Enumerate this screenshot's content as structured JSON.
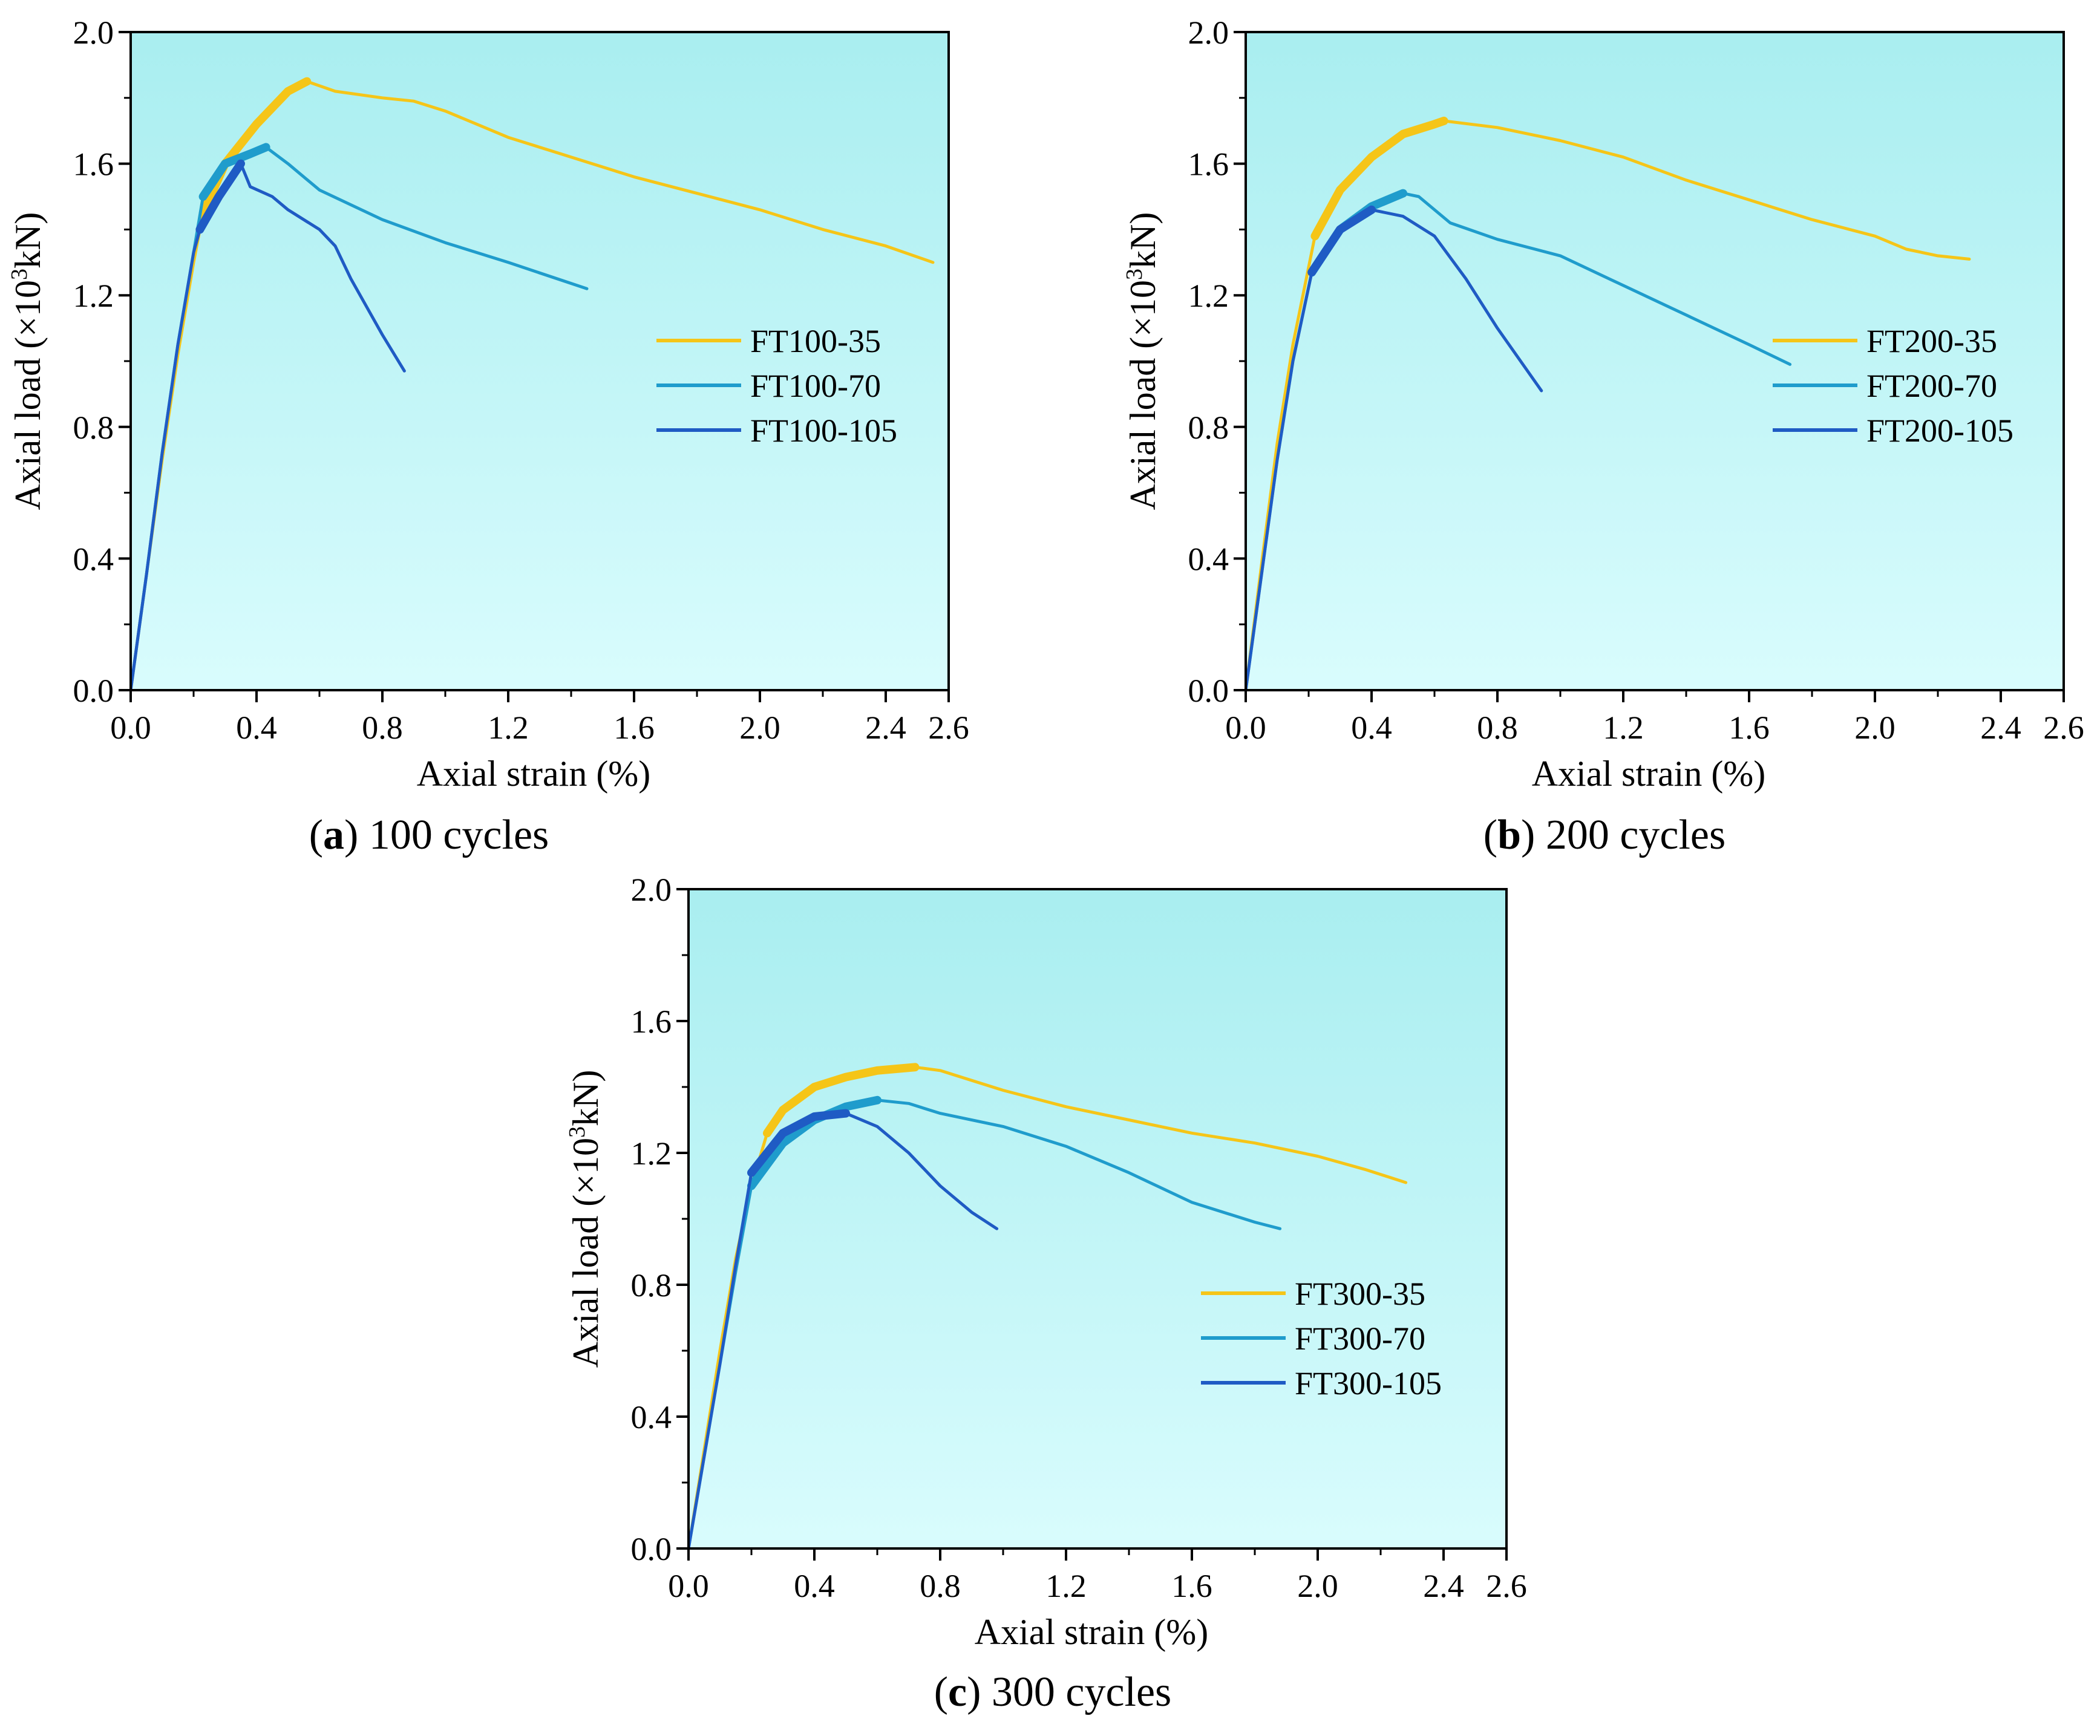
{
  "colors": {
    "series_35": "#f5c518",
    "series_70": "#1f9ccc",
    "series_105": "#1f5bc4",
    "plot_bg_top": "#a9eef0",
    "plot_bg_bottom": "#d9fcfd"
  },
  "chart_data": [
    {
      "type": "line",
      "panel_label": "a",
      "caption": "100 cycles",
      "xlabel": "Axial strain (%)",
      "ylabel_main": "Axial load (×10",
      "ylabel_sup": "3",
      "ylabel_tail": "kN)",
      "xlim": [
        0,
        2.6
      ],
      "ylim": [
        0,
        2.0
      ],
      "xticks": [
        "0.0",
        "0.4",
        "0.8",
        "1.2",
        "1.6",
        "2.0",
        "2.4",
        "2.6"
      ],
      "yticks": [
        "0.0",
        "0.4",
        "0.8",
        "1.2",
        "1.6",
        "2.0"
      ],
      "legend_position": "right-middle",
      "grid": false,
      "series": [
        {
          "name": "FT100-35",
          "color_key": "series_35",
          "x": [
            0,
            0.05,
            0.1,
            0.15,
            0.2,
            0.23,
            0.3,
            0.4,
            0.5,
            0.56,
            0.65,
            0.8,
            0.9,
            1.0,
            1.2,
            1.4,
            1.6,
            1.8,
            2.0,
            2.2,
            2.4,
            2.55
          ],
          "y": [
            0,
            0.35,
            0.7,
            1.02,
            1.3,
            1.45,
            1.6,
            1.72,
            1.82,
            1.85,
            1.82,
            1.8,
            1.79,
            1.76,
            1.68,
            1.62,
            1.56,
            1.51,
            1.46,
            1.4,
            1.35,
            1.3
          ],
          "thick_range": [
            0.22,
            0.57
          ]
        },
        {
          "name": "FT100-70",
          "color_key": "series_70",
          "x": [
            0,
            0.05,
            0.1,
            0.15,
            0.2,
            0.23,
            0.3,
            0.38,
            0.43,
            0.5,
            0.6,
            0.8,
            1.0,
            1.2,
            1.45
          ],
          "y": [
            0,
            0.35,
            0.72,
            1.05,
            1.33,
            1.5,
            1.6,
            1.63,
            1.65,
            1.6,
            1.52,
            1.43,
            1.36,
            1.3,
            1.22
          ],
          "thick_range": [
            0.22,
            0.45
          ]
        },
        {
          "name": "FT100-105",
          "color_key": "series_105",
          "x": [
            0,
            0.05,
            0.1,
            0.15,
            0.2,
            0.22,
            0.28,
            0.35,
            0.38,
            0.45,
            0.5,
            0.6,
            0.65,
            0.7,
            0.8,
            0.87
          ],
          "y": [
            0,
            0.35,
            0.72,
            1.05,
            1.33,
            1.4,
            1.5,
            1.6,
            1.53,
            1.5,
            1.46,
            1.4,
            1.35,
            1.25,
            1.08,
            0.97
          ],
          "thick_range": [
            0.21,
            0.36
          ]
        }
      ]
    },
    {
      "type": "line",
      "panel_label": "b",
      "caption": "200 cycles",
      "xlabel": "Axial strain (%)",
      "ylabel_main": "Axial load (×10",
      "ylabel_sup": "3",
      "ylabel_tail": "kN)",
      "xlim": [
        0,
        2.6
      ],
      "ylim": [
        0,
        2.0
      ],
      "xticks": [
        "0.0",
        "0.4",
        "0.8",
        "1.2",
        "1.6",
        "2.0",
        "2.4",
        "2.6"
      ],
      "yticks": [
        "0.0",
        "0.4",
        "0.8",
        "1.2",
        "1.6",
        "2.0"
      ],
      "legend_position": "right-middle",
      "grid": false,
      "series": [
        {
          "name": "FT200-35",
          "color_key": "series_35",
          "x": [
            0,
            0.05,
            0.1,
            0.15,
            0.22,
            0.3,
            0.4,
            0.5,
            0.6,
            0.63,
            0.8,
            1.0,
            1.2,
            1.4,
            1.6,
            1.8,
            2.0,
            2.1,
            2.2,
            2.3
          ],
          "y": [
            0,
            0.38,
            0.75,
            1.05,
            1.38,
            1.52,
            1.62,
            1.69,
            1.72,
            1.73,
            1.71,
            1.67,
            1.62,
            1.55,
            1.49,
            1.43,
            1.38,
            1.34,
            1.32,
            1.31
          ],
          "thick_range": [
            0.22,
            0.63
          ]
        },
        {
          "name": "FT200-70",
          "color_key": "series_70",
          "x": [
            0,
            0.05,
            0.1,
            0.15,
            0.21,
            0.3,
            0.4,
            0.5,
            0.55,
            0.65,
            0.8,
            1.0,
            1.2,
            1.4,
            1.6,
            1.73
          ],
          "y": [
            0,
            0.35,
            0.7,
            1.0,
            1.27,
            1.4,
            1.47,
            1.51,
            1.5,
            1.42,
            1.37,
            1.32,
            1.23,
            1.14,
            1.05,
            0.99
          ],
          "thick_range": [
            0.21,
            0.51
          ]
        },
        {
          "name": "FT200-105",
          "color_key": "series_105",
          "x": [
            0,
            0.05,
            0.1,
            0.15,
            0.21,
            0.3,
            0.4,
            0.5,
            0.6,
            0.7,
            0.8,
            0.94
          ],
          "y": [
            0,
            0.35,
            0.7,
            1.0,
            1.27,
            1.4,
            1.46,
            1.44,
            1.38,
            1.25,
            1.1,
            0.91
          ],
          "thick_range": [
            0.21,
            0.41
          ]
        }
      ]
    },
    {
      "type": "line",
      "panel_label": "c",
      "caption": "300 cycles",
      "xlabel": "Axial strain (%)",
      "ylabel_main": "Axial load (×10",
      "ylabel_sup": "3",
      "ylabel_tail": "kN)",
      "xlim": [
        0,
        2.6
      ],
      "ylim": [
        0,
        2.0
      ],
      "xticks": [
        "0.0",
        "0.4",
        "0.8",
        "1.2",
        "1.6",
        "2.0",
        "2.4",
        "2.6"
      ],
      "yticks": [
        "0.0",
        "0.4",
        "0.8",
        "1.2",
        "1.6",
        "2.0"
      ],
      "legend_position": "right-lower",
      "grid": false,
      "series": [
        {
          "name": "FT300-35",
          "color_key": "series_35",
          "x": [
            0,
            0.05,
            0.1,
            0.15,
            0.2,
            0.25,
            0.3,
            0.4,
            0.5,
            0.6,
            0.72,
            0.8,
            1.0,
            1.2,
            1.4,
            1.6,
            1.8,
            2.0,
            2.15,
            2.28
          ],
          "y": [
            0,
            0.3,
            0.6,
            0.88,
            1.1,
            1.26,
            1.33,
            1.4,
            1.43,
            1.45,
            1.46,
            1.45,
            1.39,
            1.34,
            1.3,
            1.26,
            1.23,
            1.19,
            1.15,
            1.11
          ],
          "thick_range": [
            0.25,
            0.72
          ]
        },
        {
          "name": "FT300-70",
          "color_key": "series_70",
          "x": [
            0,
            0.05,
            0.1,
            0.15,
            0.2,
            0.3,
            0.4,
            0.5,
            0.6,
            0.7,
            0.8,
            1.0,
            1.2,
            1.4,
            1.6,
            1.8,
            1.88
          ],
          "y": [
            0,
            0.28,
            0.56,
            0.84,
            1.1,
            1.23,
            1.3,
            1.34,
            1.36,
            1.35,
            1.32,
            1.28,
            1.22,
            1.14,
            1.05,
            0.99,
            0.97
          ],
          "thick_range": [
            0.2,
            0.6
          ]
        },
        {
          "name": "FT300-105",
          "color_key": "series_105",
          "x": [
            0,
            0.05,
            0.1,
            0.15,
            0.2,
            0.3,
            0.4,
            0.5,
            0.6,
            0.7,
            0.8,
            0.9,
            0.98
          ],
          "y": [
            0,
            0.28,
            0.56,
            0.86,
            1.14,
            1.26,
            1.31,
            1.32,
            1.28,
            1.2,
            1.1,
            1.02,
            0.97
          ],
          "thick_range": [
            0.2,
            0.5
          ]
        }
      ]
    }
  ]
}
